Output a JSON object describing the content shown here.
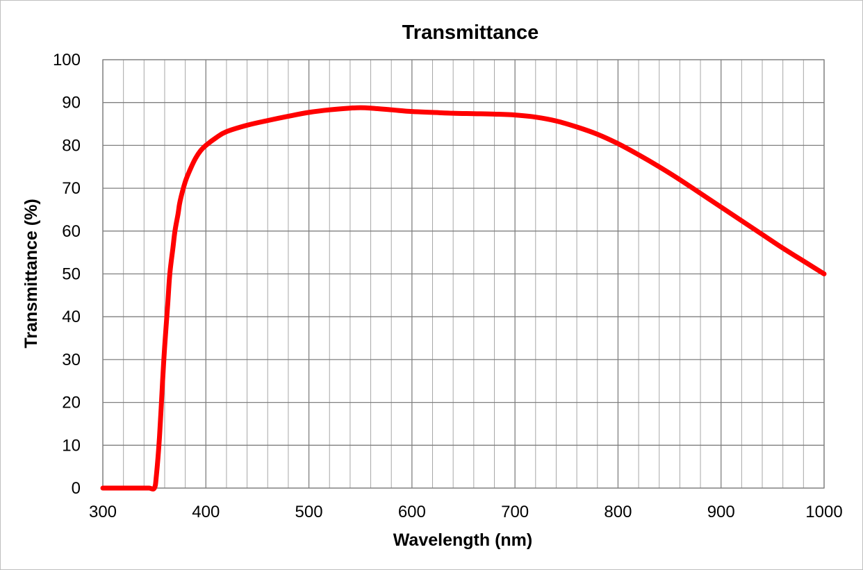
{
  "chart_data": {
    "type": "line",
    "title": "Transmittance",
    "xlabel": "Wavelength (nm)",
    "ylabel": "Transmittance (%)",
    "xlim": [
      300,
      1000
    ],
    "ylim": [
      0,
      100
    ],
    "x_ticks": [
      "300",
      "400",
      "500",
      "600",
      "700",
      "800",
      "900",
      "1000"
    ],
    "y_ticks": [
      "0",
      "10",
      "20",
      "30",
      "40",
      "50",
      "60",
      "70",
      "80",
      "90",
      "100"
    ],
    "x_minor_step": 20,
    "grid": true,
    "legend": "none",
    "series": [
      {
        "color": "#ff0000",
        "x": [
          300,
          340,
          345,
          350,
          352,
          355,
          358,
          360,
          363,
          365,
          368,
          370,
          373,
          375,
          380,
          385,
          390,
          395,
          400,
          410,
          420,
          440,
          460,
          480,
          500,
          520,
          540,
          550,
          560,
          580,
          600,
          620,
          640,
          660,
          680,
          700,
          720,
          740,
          760,
          780,
          800,
          820,
          840,
          860,
          880,
          900,
          920,
          940,
          960,
          980,
          1000
        ],
        "y": [
          0,
          0,
          0,
          0,
          3,
          12,
          25,
          33,
          43,
          50,
          56,
          60,
          64,
          67,
          71.5,
          74.5,
          77,
          78.8,
          80,
          81.8,
          83.2,
          84.7,
          85.8,
          86.8,
          87.7,
          88.3,
          88.7,
          88.8,
          88.7,
          88.3,
          87.9,
          87.7,
          87.5,
          87.4,
          87.3,
          87.1,
          86.6,
          85.7,
          84.3,
          82.6,
          80.4,
          77.8,
          75.0,
          72.0,
          68.8,
          65.6,
          62.4,
          59.2,
          56.0,
          53.0,
          50.0
        ]
      }
    ]
  }
}
